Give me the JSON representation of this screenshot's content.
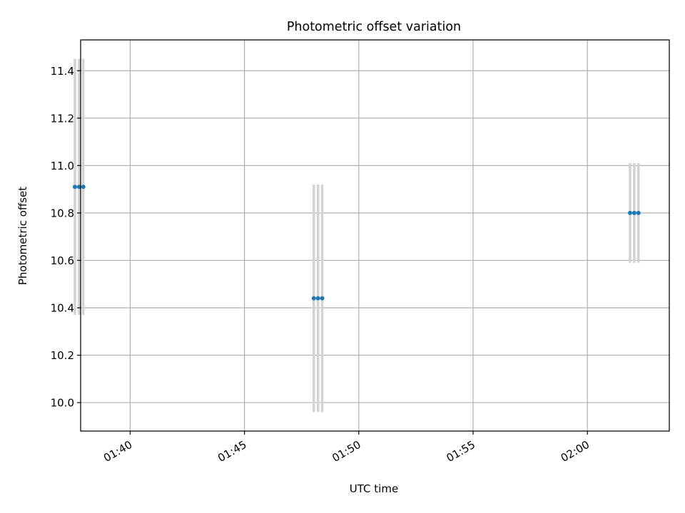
{
  "chart_data": {
    "type": "scatter",
    "title": "Photometric offset variation",
    "xlabel": "UTC time",
    "ylabel": "Photometric offset",
    "x_axis_type": "time",
    "xlim": [
      "01:37:50",
      "02:03:35"
    ],
    "ylim": [
      9.88,
      11.53
    ],
    "x_ticks": [
      "01:40",
      "01:45",
      "01:50",
      "01:55",
      "02:00"
    ],
    "y_ticks": [
      10.0,
      10.2,
      10.4,
      10.6,
      10.8,
      11.0,
      11.2,
      11.4
    ],
    "x_tick_labels": [
      "01:40",
      "01:45",
      "01:50",
      "01:55",
      "02:00"
    ],
    "y_tick_labels": [
      "10.0",
      "10.2",
      "10.4",
      "10.6",
      "10.8",
      "11.0",
      "11.2",
      "11.4"
    ],
    "grid": true,
    "colors": {
      "points": "#1f77b4",
      "error_bars": "#d3d3d3",
      "grid": "#b0b0b0"
    },
    "series": [
      {
        "points": [
          {
            "x": "01:37:35",
            "y": 10.91,
            "yerr": 0.54
          },
          {
            "x": "01:37:46",
            "y": 10.91,
            "yerr": 0.54
          },
          {
            "x": "01:37:57",
            "y": 10.91,
            "yerr": 0.54
          },
          {
            "x": "01:48:02",
            "y": 10.44,
            "yerr": 0.48
          },
          {
            "x": "01:48:13",
            "y": 10.44,
            "yerr": 0.48
          },
          {
            "x": "01:48:24",
            "y": 10.44,
            "yerr": 0.48
          },
          {
            "x": "02:01:52",
            "y": 10.8,
            "yerr": 0.21
          },
          {
            "x": "02:02:03",
            "y": 10.8,
            "yerr": 0.21
          },
          {
            "x": "02:02:14",
            "y": 10.8,
            "yerr": 0.21
          }
        ]
      }
    ]
  }
}
